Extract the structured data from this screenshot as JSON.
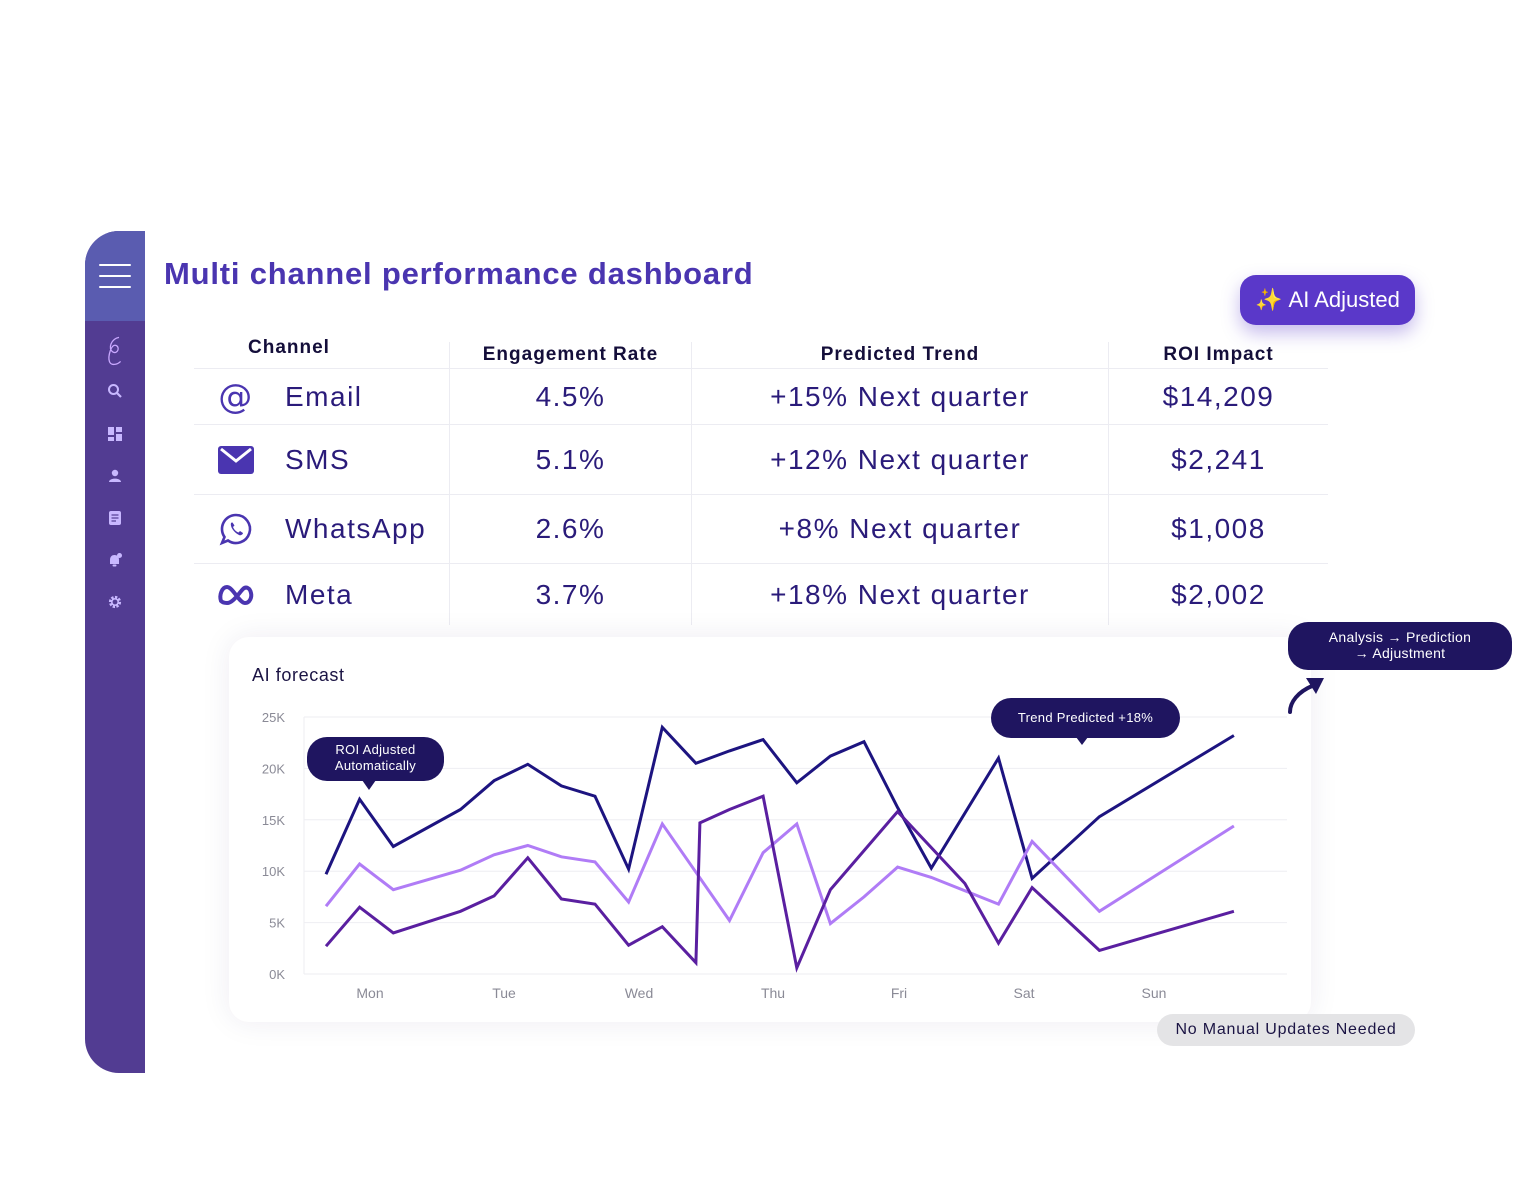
{
  "page_title": "Multi channel performance dashboard",
  "ai_badge": {
    "icon": "sparkles-icon",
    "label": "AI Adjusted"
  },
  "sidebar": {
    "menu_icon": "hamburger-icon",
    "items": [
      {
        "icon": "logo-icon"
      },
      {
        "icon": "search-icon"
      },
      {
        "icon": "dashboard-icon"
      },
      {
        "icon": "user-icon"
      },
      {
        "icon": "document-icon"
      },
      {
        "icon": "notification-icon"
      },
      {
        "icon": "gear-icon"
      }
    ]
  },
  "table": {
    "headers": [
      "Channel",
      "Engagement Rate",
      "Predicted Trend",
      "ROI Impact"
    ],
    "rows": [
      {
        "icon": "at-sign-icon",
        "channel": "Email",
        "engagement": "4.5%",
        "trend": "+15% Next quarter",
        "roi": "$14,209"
      },
      {
        "icon": "envelope-icon",
        "channel": "SMS",
        "engagement": "5.1%",
        "trend": "+12% Next quarter",
        "roi": "$2,241"
      },
      {
        "icon": "whatsapp-icon",
        "channel": "WhatsApp",
        "engagement": "2.6%",
        "trend": "+8% Next quarter",
        "roi": "$1,008"
      },
      {
        "icon": "meta-icon",
        "channel": "Meta",
        "engagement": "3.7%",
        "trend": "+18% Next quarter",
        "roi": "$2,002"
      }
    ]
  },
  "chart_title": "AI forecast",
  "tooltips": {
    "roi": [
      "ROI Adjusted",
      "Automatically"
    ],
    "trend": "Trend Predicted +18%",
    "flow": [
      "Analysis → Prediction",
      "→ Adjustment"
    ]
  },
  "footer_badge": "No Manual Updates Needed",
  "colors": {
    "series_dark": "#1d1480",
    "series_light": "#b07cf6",
    "series_mid": "#5a1fa0",
    "accent": "#5a38c9"
  },
  "chart_data": {
    "type": "line",
    "title": "",
    "xlabel": "",
    "ylabel": "",
    "ylim": [
      0,
      25000
    ],
    "yticks": [
      "0K",
      "5K",
      "10K",
      "15K",
      "20K",
      "25K"
    ],
    "x_categories": [
      "Mon",
      "Tue",
      "Wed",
      "Thu",
      "Fri",
      "Sat",
      "Sun"
    ],
    "grid": true,
    "series": [
      {
        "color": "#1d1480",
        "x": [
          0,
          0.25,
          0.5,
          1.0,
          1.25,
          1.5,
          1.75,
          2.0,
          2.25,
          2.5,
          2.75,
          3.0,
          3.25,
          3.5,
          3.75,
          4.0,
          4.25,
          4.5,
          5.0,
          5.25,
          5.75,
          6.75
        ],
        "values": [
          9700,
          17000,
          12400,
          16000,
          18800,
          20400,
          18300,
          17300,
          10200,
          24000,
          20500,
          21700,
          22800,
          18600,
          21200,
          22600,
          16200,
          10300,
          21000,
          9300,
          15300,
          23200
        ]
      },
      {
        "color": "#b07cf6",
        "x": [
          0,
          0.25,
          0.5,
          1.0,
          1.25,
          1.5,
          1.75,
          2.0,
          2.25,
          2.5,
          2.75,
          3.0,
          3.25,
          3.5,
          3.75,
          4.0,
          4.25,
          4.5,
          5.0,
          5.25,
          5.75,
          6.75
        ],
        "values": [
          6600,
          10700,
          8200,
          10100,
          11600,
          12500,
          11400,
          10900,
          7000,
          14600,
          9900,
          5200,
          11800,
          14600,
          4900,
          7500,
          10400,
          9400,
          6800,
          12900,
          6100,
          14400
        ]
      },
      {
        "color": "#5a1fa0",
        "x": [
          0,
          0.25,
          0.5,
          1.0,
          1.25,
          1.5,
          1.75,
          2.0,
          2.25,
          2.5,
          2.75,
          2.78,
          3.0,
          3.25,
          3.5,
          3.75,
          4.25,
          4.75,
          5.0,
          5.25,
          5.75,
          6.75
        ],
        "values": [
          2700,
          6500,
          4000,
          6100,
          7600,
          11300,
          7300,
          6800,
          2800,
          4600,
          1100,
          14700,
          16000,
          17300,
          600,
          8200,
          15800,
          8800,
          3000,
          8400,
          2300,
          6100
        ]
      }
    ]
  }
}
